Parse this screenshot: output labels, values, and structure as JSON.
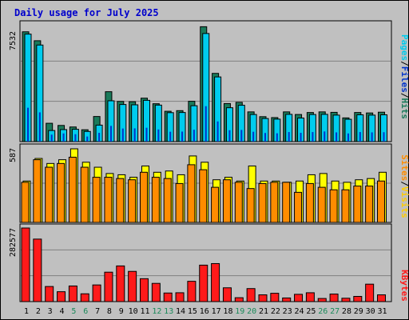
{
  "title": "Daily usage for July 2025",
  "colors": {
    "background": "#c0c0c0",
    "panel": "#c0c0c0",
    "grid": "#808080",
    "title": "#0000cc",
    "hits": "#1a7a5a",
    "files": "#00ccee",
    "pages": "#0033cc",
    "visits": "#ffff00",
    "sites": "#ff8c00",
    "kbytes": "#ff1a1a",
    "weekend_label": "#1a8a5a",
    "weekday_label": "#000000"
  },
  "chart_data": [
    {
      "type": "bar",
      "name": "hits-files-pages",
      "categories": [
        "1",
        "2",
        "3",
        "4",
        "5",
        "6",
        "7",
        "8",
        "9",
        "10",
        "11",
        "12",
        "13",
        "14",
        "15",
        "16",
        "17",
        "18",
        "19",
        "20",
        "21",
        "22",
        "23",
        "24",
        "25",
        "26",
        "27",
        "28",
        "29",
        "30",
        "31"
      ],
      "weekend_days": [
        "5",
        "6",
        "12",
        "13",
        "19",
        "20",
        "26",
        "27"
      ],
      "max_label": "7532",
      "ylim": [
        0,
        7532
      ],
      "legend": [
        "Pages",
        "/",
        "Files",
        "/",
        "Hits"
      ],
      "series": [
        {
          "name": "Hits",
          "values": [
            7130,
            6550,
            1190,
            1050,
            950,
            770,
            1630,
            3240,
            2610,
            2590,
            2820,
            2460,
            1970,
            2010,
            2620,
            7460,
            4430,
            2470,
            2550,
            1930,
            1620,
            1560,
            1930,
            1760,
            1890,
            1930,
            1900,
            1540,
            1890,
            1860,
            1910
          ]
        },
        {
          "name": "Files",
          "values": [
            6980,
            6270,
            720,
            780,
            800,
            660,
            1070,
            2650,
            2410,
            2390,
            2680,
            2370,
            1880,
            1890,
            2330,
            7020,
            4200,
            2200,
            2360,
            1760,
            1500,
            1460,
            1770,
            1530,
            1760,
            1770,
            1720,
            1450,
            1740,
            1720,
            1740
          ]
        },
        {
          "name": "Pages",
          "values": [
            2200,
            1900,
            450,
            530,
            480,
            330,
            570,
            1020,
            850,
            860,
            900,
            790,
            640,
            650,
            770,
            2300,
            1310,
            740,
            760,
            640,
            560,
            540,
            620,
            570,
            620,
            660,
            600,
            530,
            620,
            600,
            610
          ]
        }
      ]
    },
    {
      "type": "bar",
      "name": "visits-sites",
      "max_label": "587",
      "ylim": [
        0,
        587
      ],
      "legend": [
        "Sites",
        "/",
        "Visits"
      ],
      "series": [
        {
          "name": "Visits",
          "values": [
            330,
            510,
            470,
            500,
            587,
            480,
            440,
            390,
            380,
            360,
            450,
            400,
            410,
            380,
            530,
            480,
            340,
            360,
            330,
            450,
            330,
            330,
            320,
            330,
            380,
            390,
            330,
            320,
            340,
            350,
            400
          ]
        },
        {
          "name": "Sites",
          "values": [
            320,
            500,
            440,
            470,
            520,
            440,
            360,
            360,
            350,
            340,
            400,
            360,
            350,
            310,
            460,
            420,
            280,
            340,
            320,
            270,
            310,
            320,
            320,
            240,
            310,
            280,
            260,
            260,
            290,
            290,
            330
          ]
        }
      ]
    },
    {
      "type": "bar",
      "name": "kbytes",
      "max_label": "282577",
      "ylim": [
        0,
        282577
      ],
      "legend": [
        "KBytes"
      ],
      "series": [
        {
          "name": "KBytes",
          "values": [
            282577,
            240000,
            58000,
            38000,
            60000,
            30000,
            64000,
            113000,
            137000,
            116000,
            88000,
            70000,
            33000,
            34000,
            78000,
            140000,
            146000,
            53000,
            15000,
            50000,
            26000,
            32000,
            14000,
            28000,
            34000,
            12000,
            29000,
            13000,
            20000,
            67000,
            26000
          ]
        }
      ]
    }
  ]
}
